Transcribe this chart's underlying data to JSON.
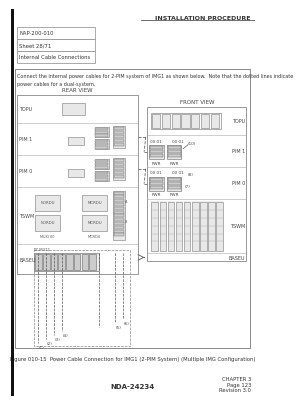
{
  "title_right": "INSTALLATION PROCEDURE",
  "header_lines": [
    "NAP-200-010",
    "Sheet 28/71",
    "Internal Cable Connections"
  ],
  "instruction_text": "Connect the internal power cables for 2-PIM system of IMG1 as shown below.  Note that the dotted lines indicate\npower cables for a dual-system.",
  "figure_caption": "Figure 010-15  Power Cable Connection for IMG1 (2-PIM System) (Multiple IMG Configuration)",
  "footer_left": "NDA-24234",
  "footer_right": "CHAPTER 3\nPage 123\nRevision 3.0",
  "rear_view_label": "REAR VIEW",
  "front_view_label": "FRONT VIEW",
  "bg_color": "#ffffff",
  "gray_light": "#e8e8e8",
  "gray_mid": "#cccccc",
  "gray_dark": "#999999",
  "border_color": "#888888",
  "text_color": "#444444",
  "line_color": "#666666"
}
